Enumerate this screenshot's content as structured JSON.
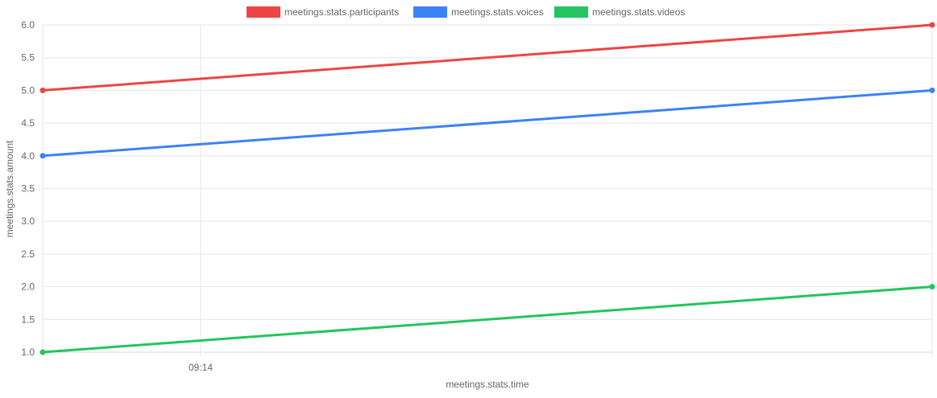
{
  "chart_data": {
    "type": "line",
    "title": "",
    "xlabel": "meetings.stats.time",
    "ylabel": "meetings.stats.amount",
    "x_ticks": [
      "09:14"
    ],
    "ylim": [
      1.0,
      6.0
    ],
    "y_ticks": [
      "1.0",
      "1.5",
      "2.0",
      "2.5",
      "3.0",
      "3.5",
      "4.0",
      "4.5",
      "5.0",
      "5.5",
      "6.0"
    ],
    "grid": true,
    "legend_position": "top",
    "series": [
      {
        "name": "meetings.stats.participants",
        "color": "#ef4444",
        "values": [
          5,
          6
        ]
      },
      {
        "name": "meetings.stats.voices",
        "color": "#3b82f6",
        "values": [
          4,
          5
        ]
      },
      {
        "name": "meetings.stats.videos",
        "color": "#22c55e",
        "values": [
          1,
          2
        ]
      }
    ]
  }
}
